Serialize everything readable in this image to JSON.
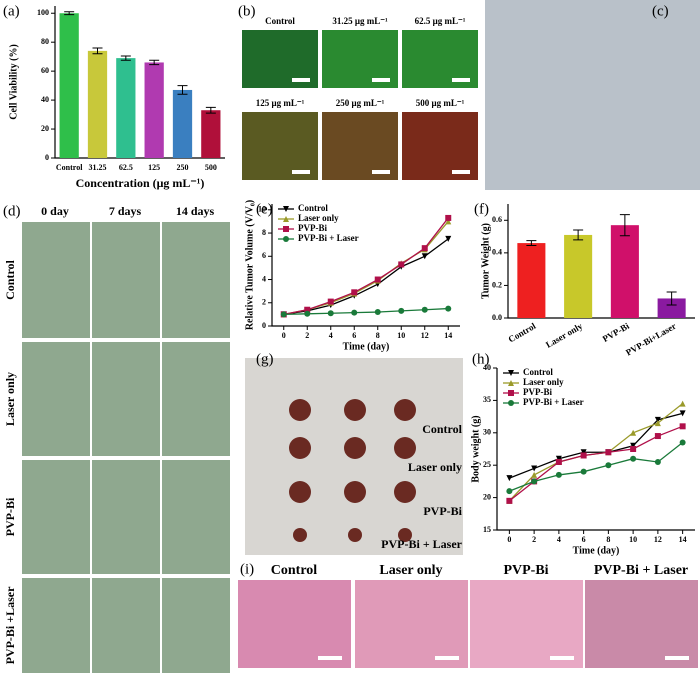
{
  "panel_labels": [
    "(a)",
    "(b)",
    "(c)",
    "(d)",
    "(e)",
    "(f)",
    "(g)",
    "(h)",
    "(i)"
  ],
  "chart_data": [
    {
      "type": "bar",
      "categories": [
        "Control",
        "31.25",
        "62.5",
        "125",
        "250",
        "500"
      ],
      "values": [
        100,
        74,
        69,
        66,
        47,
        33
      ],
      "errors": [
        1,
        2,
        1.5,
        1.5,
        3,
        2
      ],
      "colors": [
        "#2fbf4a",
        "#c8c83a",
        "#2fbf8f",
        "#b03ab0",
        "#3a7fc0",
        "#b0103a"
      ],
      "y_label": "Cell Viability (%)",
      "x_label": "Concentration (μg mL⁻¹)",
      "ylim": [
        0,
        105
      ],
      "yticks": [
        0,
        20,
        40,
        60,
        80,
        100
      ]
    },
    {
      "type": "line",
      "x": [
        0,
        2,
        4,
        6,
        8,
        10,
        12,
        14
      ],
      "series": [
        {
          "name": "Control",
          "color": "#000000",
          "marker": "down",
          "values": [
            1,
            1.3,
            1.8,
            2.6,
            3.6,
            5.1,
            6.0,
            7.5
          ]
        },
        {
          "name": "Laser only",
          "color": "#9a9a2a",
          "marker": "up",
          "values": [
            1,
            1.4,
            2.0,
            2.8,
            3.9,
            5.4,
            6.6,
            9.0
          ]
        },
        {
          "name": "PVP-Bi",
          "color": "#b0104a",
          "marker": "square",
          "values": [
            1,
            1.4,
            2.1,
            2.9,
            4.0,
            5.3,
            6.7,
            9.3
          ]
        },
        {
          "name": "PVP-Bi + Laser",
          "color": "#1a7a3a",
          "marker": "circle",
          "values": [
            1,
            1.05,
            1.1,
            1.15,
            1.2,
            1.3,
            1.4,
            1.5
          ]
        }
      ],
      "y_label": "Relative Tumor Volume (V/V₀)",
      "x_label": "Time (day)",
      "xlim": [
        -1,
        15
      ],
      "xticks": [
        0,
        2,
        4,
        6,
        8,
        10,
        12,
        14
      ],
      "ylim": [
        0,
        10.5
      ],
      "yticks": [
        0,
        2,
        4,
        6,
        8,
        10
      ]
    },
    {
      "type": "bar",
      "categories": [
        "Control",
        "Laser only",
        "PVP-Bi",
        "PVP-Bi+Laser"
      ],
      "values": [
        0.46,
        0.51,
        0.57,
        0.12
      ],
      "errors": [
        0.015,
        0.03,
        0.065,
        0.04
      ],
      "colors": [
        "#ee2020",
        "#c8c82a",
        "#d0106a",
        "#8a1aa0"
      ],
      "y_label": "Tumor Weight (g)",
      "ylim": [
        0,
        0.7
      ],
      "yticks": [
        {
          "value": 0,
          "label": "0.0"
        },
        0.2,
        0.4,
        0.6
      ]
    },
    {
      "type": "line",
      "x": [
        0,
        2,
        4,
        6,
        8,
        10,
        12,
        14
      ],
      "series": [
        {
          "name": "Control",
          "color": "#000000",
          "marker": "down",
          "values": [
            23,
            24.5,
            26,
            27,
            27,
            28,
            32,
            33
          ]
        },
        {
          "name": "Laser only",
          "color": "#9a9a2a",
          "marker": "up",
          "values": [
            19.5,
            23.5,
            25.5,
            26.5,
            27,
            30,
            31.5,
            34.5
          ]
        },
        {
          "name": "PVP-Bi",
          "color": "#b0104a",
          "marker": "square",
          "values": [
            19.5,
            22.5,
            25.5,
            26.5,
            27,
            27.5,
            29.5,
            31
          ]
        },
        {
          "name": "PVP-Bi + Laser",
          "color": "#1a7a3a",
          "marker": "circle",
          "values": [
            21,
            22.5,
            23.5,
            24,
            25,
            26,
            25.5,
            28.5
          ]
        }
      ],
      "y_label": "Body weight (g)",
      "x_label": "Time (day)",
      "xlim": [
        -1,
        15
      ],
      "xticks": [
        0,
        2,
        4,
        6,
        8,
        10,
        12,
        14
      ],
      "ylim": [
        15,
        40
      ],
      "yticks": [
        15,
        20,
        25,
        30,
        35,
        40
      ]
    }
  ],
  "images": {
    "b": [
      "Control",
      "31.25 μg mL⁻¹",
      "62.5 μg mL⁻¹",
      "125 μg mL⁻¹",
      "250 μg mL⁻¹",
      "500 μg mL⁻¹"
    ],
    "d": {
      "columns": [
        "0 day",
        "7 days",
        "14 days"
      ],
      "rows": [
        "Control",
        "Laser only",
        "PVP-Bi",
        "PVP-Bi +Laser"
      ]
    },
    "g": [
      "Control",
      "Laser only",
      "PVP-Bi",
      "PVP-Bi + Laser"
    ],
    "i": [
      "Control",
      "Laser only",
      "PVP-Bi",
      "PVP-Bi + Laser"
    ]
  }
}
